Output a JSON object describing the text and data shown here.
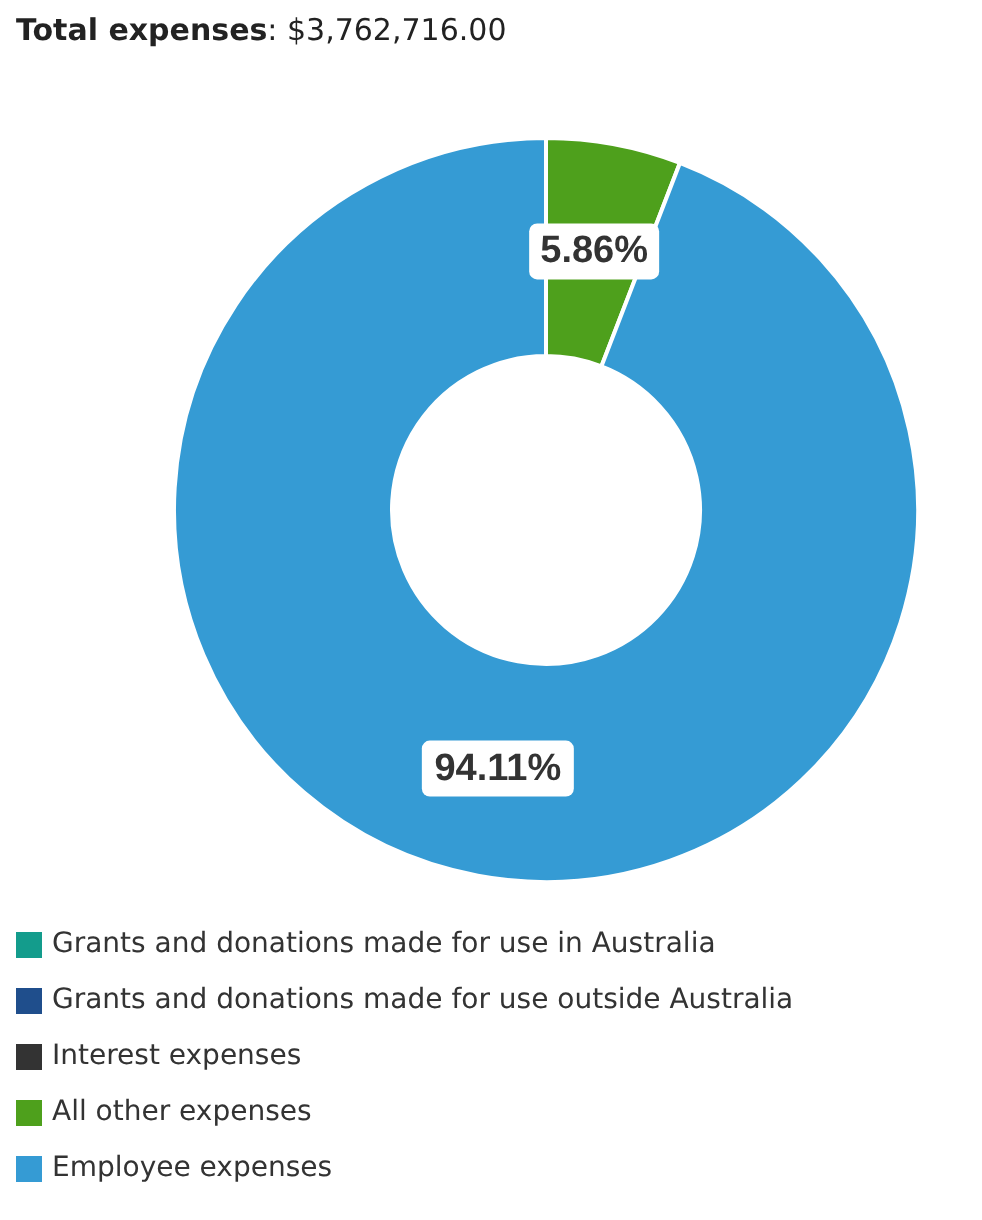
{
  "chart_data": {
    "type": "donut",
    "title": "Total expenses: $3,762,716.00",
    "categories": [
      "Grants and donations made for use in Australia",
      "Grants and donations made for use outside Australia",
      "Interest expenses",
      "All other expenses",
      "Employee expenses"
    ],
    "values": [
      0,
      0,
      0,
      5.86,
      94.11
    ],
    "colors": [
      "#139c8c",
      "#1f4e8c",
      "#333333",
      "#4ea01c",
      "#359bd4"
    ],
    "value_labels": [
      null,
      null,
      null,
      "5.86%",
      "94.11%"
    ],
    "legend": "bottom"
  }
}
